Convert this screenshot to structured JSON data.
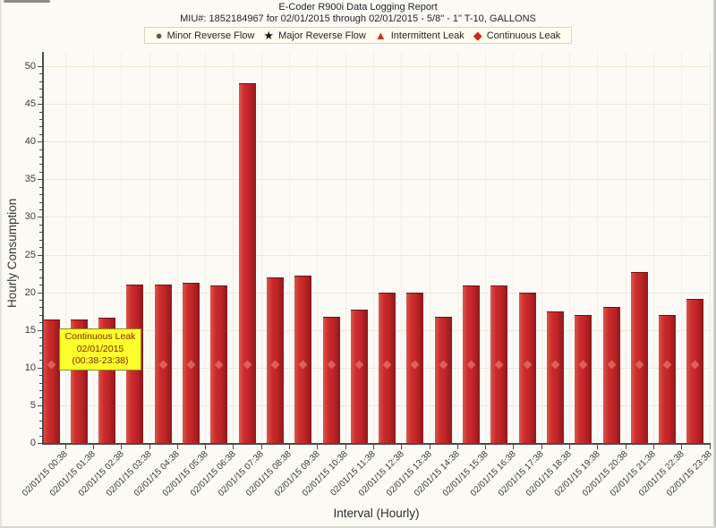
{
  "report": {
    "title": "E-Coder R900i Data Logging Report",
    "subtitle": "MIU#: 1852184967 for 02/01/2015 through 02/01/2015 - 5/8\" - 1\" T-10, GALLONS"
  },
  "legend": {
    "items": [
      {
        "label": "Minor Reverse Flow",
        "icon": "circle",
        "glyph": "●",
        "color": "#5c5854"
      },
      {
        "label": "Major Reverse Flow",
        "icon": "star",
        "glyph": "★",
        "color": "#1b1b1b"
      },
      {
        "label": "Intermittent Leak",
        "icon": "triangle",
        "glyph": "▲",
        "color": "#cf3126"
      },
      {
        "label": "Continuous Leak",
        "icon": "diamond",
        "glyph": "◆",
        "color": "#dd1f1f"
      }
    ]
  },
  "tooltip": {
    "line1": "Continuous Leak",
    "line2": "02/01/2015",
    "line3": "(00:38-23:38)",
    "bg_color": "#ffff2b",
    "text_color": "#7c2800"
  },
  "chart_data": {
    "type": "bar",
    "title": "E-Coder R900i Data Logging Report",
    "xlabel": "Interval (Hourly)",
    "ylabel": "Hourly Consumption",
    "ylim": [
      0,
      50
    ],
    "ytick_step": 5,
    "grid": true,
    "bar_color": "#c42a2b",
    "categories": [
      "02/01/15 00:38",
      "02/01/15 01:38",
      "02/01/15 02:38",
      "02/01/15 03:38",
      "02/01/15 04:38",
      "02/01/15 05:38",
      "02/01/15 06:38",
      "02/01/15 07:38",
      "02/01/15 08:38",
      "02/01/15 09:38",
      "02/01/15 10:38",
      "02/01/15 11:38",
      "02/01/15 12:38",
      "02/01/15 13:38",
      "02/01/15 14:38",
      "02/01/15 15:38",
      "02/01/15 16:38",
      "02/01/15 17:38",
      "02/01/15 18:38",
      "02/01/15 19:38",
      "02/01/15 20:38",
      "02/01/15 21:38",
      "02/01/15 22:38",
      "02/01/15 23:38"
    ],
    "values": [
      16.4,
      16.4,
      16.6,
      21.0,
      21.0,
      21.2,
      20.9,
      47.8,
      22.0,
      22.2,
      16.8,
      17.7,
      19.9,
      20.0,
      16.8,
      20.9,
      20.9,
      20.0,
      17.5,
      17.0,
      18.0,
      22.7,
      17.0,
      19.1
    ],
    "leak_markers": {
      "shape": "diamond",
      "color": "#e8796c",
      "value": 10.4,
      "on_every_bar": true
    }
  }
}
